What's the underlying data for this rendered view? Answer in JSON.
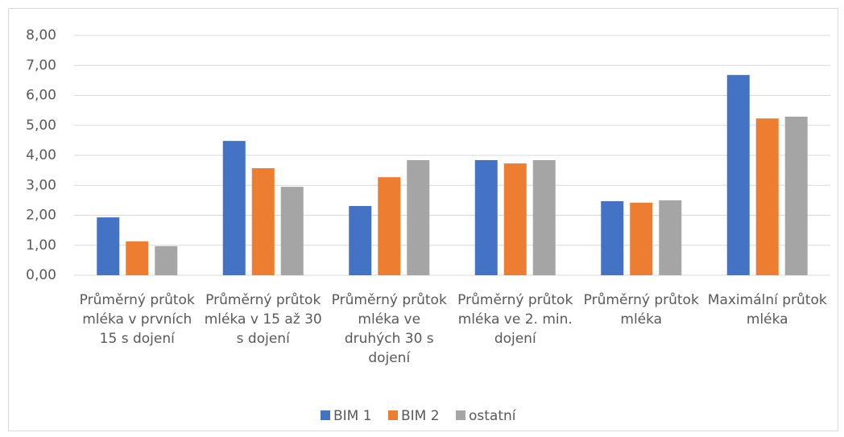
{
  "chart_data": {
    "type": "bar",
    "categories": [
      "Průměrný průtok mléka v prvních 15 s dojení",
      "Průměrný průtok mléka v 15 až 30 s dojení",
      "Průměrný průtok mléka ve druhých 30 s dojení",
      "Průměrný průtok mléka ve 2. min. dojení",
      "Průměrný průtok mléka",
      "Maximální průtok mléka"
    ],
    "series": [
      {
        "name": "BIM 1",
        "color": "#4472c4",
        "values": [
          1.93,
          4.48,
          2.31,
          3.84,
          2.47,
          6.68
        ]
      },
      {
        "name": "BIM 2",
        "color": "#ed7d31",
        "values": [
          1.13,
          3.57,
          3.27,
          3.73,
          2.42,
          5.23
        ]
      },
      {
        "name": "ostatní",
        "color": "#a5a5a5",
        "values": [
          0.97,
          2.95,
          3.84,
          3.84,
          2.5,
          5.29
        ]
      }
    ],
    "ylim": [
      0,
      8
    ],
    "yticks": [
      {
        "value": 0,
        "label": "0,00"
      },
      {
        "value": 1,
        "label": "1,00"
      },
      {
        "value": 2,
        "label": "2,00"
      },
      {
        "value": 3,
        "label": "3,00"
      },
      {
        "value": 4,
        "label": "4,00"
      },
      {
        "value": 5,
        "label": "5,00"
      },
      {
        "value": 6,
        "label": "6,00"
      },
      {
        "value": 7,
        "label": "7,00"
      },
      {
        "value": 8,
        "label": "8,00"
      }
    ],
    "grid": true,
    "legend": "bottom"
  }
}
